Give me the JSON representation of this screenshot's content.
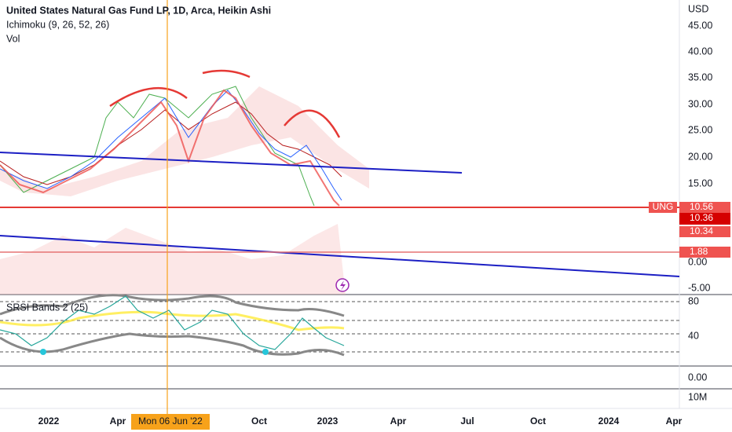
{
  "header": {
    "title": "United States Natural Gas Fund LP, 1D, Arca, Heikin Ashi",
    "indicator": "Ichimoku (9, 26, 52, 26)",
    "volume": "Vol"
  },
  "price_axis": {
    "currency": "USD",
    "labels": [
      "45.00",
      "40.00",
      "35.00",
      "30.00",
      "25.00",
      "20.00",
      "15.00"
    ]
  },
  "badges": {
    "symbol": "UNG",
    "last": "10.56",
    "close": "10.36",
    "low": "10.34",
    "volume_ind": "1.88"
  },
  "vol_axis": [
    "0.00",
    "-5.00"
  ],
  "srsi": {
    "title": "SRSI Bands 2 (25)",
    "labels": [
      "80",
      "40"
    ]
  },
  "lower_axis": [
    "0.00",
    "10M"
  ],
  "time_axis": [
    "2022",
    "Apr",
    "Oct",
    "2023",
    "Apr",
    "Jul",
    "Oct",
    "2024",
    "Apr"
  ],
  "crosshair_date": "Mon 06 Jun '22"
}
